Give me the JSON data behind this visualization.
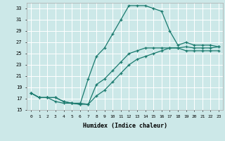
{
  "xlabel": "Humidex (Indice chaleur)",
  "bg_color": "#cce8e8",
  "grid_color": "#ffffff",
  "line_color": "#1a7a6e",
  "xlim": [
    -0.5,
    23.5
  ],
  "ylim": [
    15,
    34
  ],
  "yticks": [
    15,
    17,
    19,
    21,
    23,
    25,
    27,
    29,
    31,
    33
  ],
  "xticks": [
    0,
    1,
    2,
    3,
    4,
    5,
    6,
    7,
    8,
    9,
    10,
    11,
    12,
    13,
    14,
    15,
    16,
    17,
    18,
    19,
    20,
    21,
    22,
    23
  ],
  "line1_x": [
    0,
    1,
    2,
    3,
    4,
    5,
    6,
    7,
    8,
    9,
    10,
    11,
    12,
    13,
    14,
    15,
    16,
    17,
    18,
    19,
    20,
    21,
    22,
    23
  ],
  "line1_y": [
    18.0,
    17.2,
    17.2,
    16.5,
    16.2,
    16.2,
    16.0,
    20.5,
    24.5,
    26.0,
    28.5,
    31.0,
    33.5,
    33.5,
    33.5,
    33.0,
    32.5,
    29.0,
    26.5,
    27.0,
    26.5,
    26.5,
    26.5,
    26.2
  ],
  "line2_x": [
    0,
    1,
    2,
    3,
    4,
    5,
    6,
    7,
    8,
    9,
    10,
    11,
    12,
    13,
    14,
    15,
    16,
    17,
    18,
    19,
    20,
    21,
    22,
    23
  ],
  "line2_y": [
    18.0,
    17.2,
    17.2,
    17.2,
    16.5,
    16.2,
    16.2,
    16.0,
    19.5,
    20.5,
    22.0,
    23.5,
    25.0,
    25.5,
    26.0,
    26.0,
    26.0,
    26.0,
    26.0,
    26.2,
    26.0,
    26.0,
    26.0,
    26.2
  ],
  "line3_x": [
    0,
    1,
    2,
    3,
    4,
    5,
    6,
    7,
    8,
    9,
    10,
    11,
    12,
    13,
    14,
    15,
    16,
    17,
    18,
    19,
    20,
    21,
    22,
    23
  ],
  "line3_y": [
    18.0,
    17.2,
    17.2,
    17.2,
    16.5,
    16.2,
    16.0,
    16.0,
    17.5,
    18.5,
    20.0,
    21.5,
    23.0,
    24.0,
    24.5,
    25.0,
    25.5,
    26.0,
    26.0,
    25.5,
    25.5,
    25.5,
    25.5,
    25.5
  ]
}
